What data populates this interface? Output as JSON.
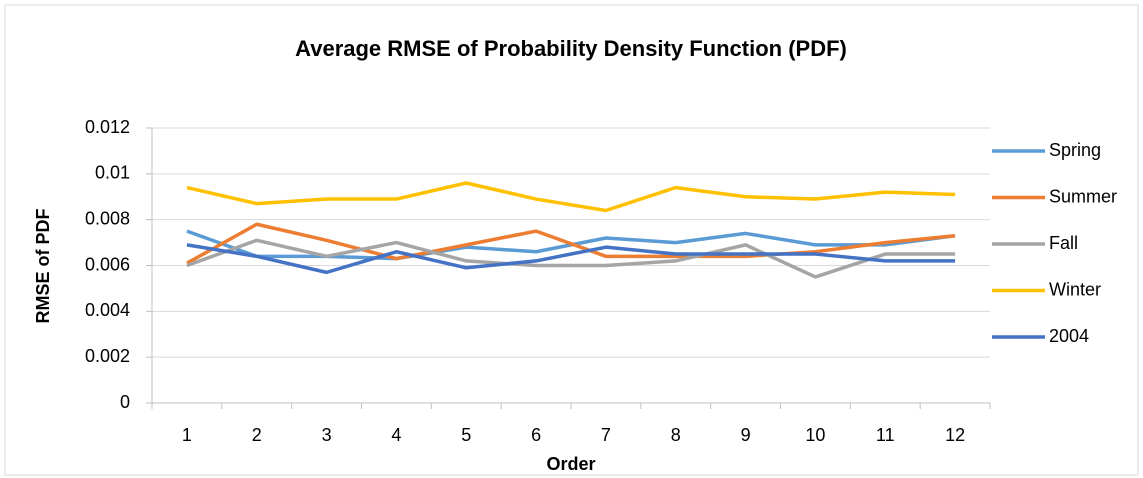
{
  "chart_data": {
    "type": "line",
    "title": "Average RMSE of Probability Density Function (PDF)",
    "x_label": "Order",
    "y_label": "RMSE of PDF",
    "categories": [
      "1",
      "2",
      "3",
      "4",
      "5",
      "6",
      "7",
      "8",
      "9",
      "10",
      "11",
      "12"
    ],
    "ylim": [
      0,
      0.012
    ],
    "yticks": [
      0,
      0.002,
      0.004,
      0.006,
      0.008,
      0.01,
      0.012
    ],
    "grid": true,
    "legend": "right",
    "series": [
      {
        "name": "Spring",
        "color": "#5b9bd5",
        "values": [
          0.0075,
          0.0064,
          0.0064,
          0.0063,
          0.0068,
          0.0066,
          0.0072,
          0.007,
          0.0074,
          0.0069,
          0.0069,
          0.0073
        ]
      },
      {
        "name": "Summer",
        "color": "#ed7d31",
        "values": [
          0.0061,
          0.0078,
          0.0071,
          0.0063,
          0.0069,
          0.0075,
          0.0064,
          0.0064,
          0.0064,
          0.0066,
          0.007,
          0.0073
        ]
      },
      {
        "name": "Fall",
        "color": "#a5a5a5",
        "values": [
          0.006,
          0.0071,
          0.0064,
          0.007,
          0.0062,
          0.006,
          0.006,
          0.0062,
          0.0069,
          0.0055,
          0.0065,
          0.0065
        ]
      },
      {
        "name": "Winter",
        "color": "#ffc000",
        "values": [
          0.0094,
          0.0087,
          0.0089,
          0.0089,
          0.0096,
          0.0089,
          0.0084,
          0.0094,
          0.009,
          0.0089,
          0.0092,
          0.0091
        ]
      },
      {
        "name": "2004",
        "color": "#4472c4",
        "values": [
          0.0069,
          0.0064,
          0.0057,
          0.0066,
          0.0059,
          0.0062,
          0.0068,
          0.0065,
          0.0065,
          0.0065,
          0.0062,
          0.0062
        ]
      }
    ]
  }
}
